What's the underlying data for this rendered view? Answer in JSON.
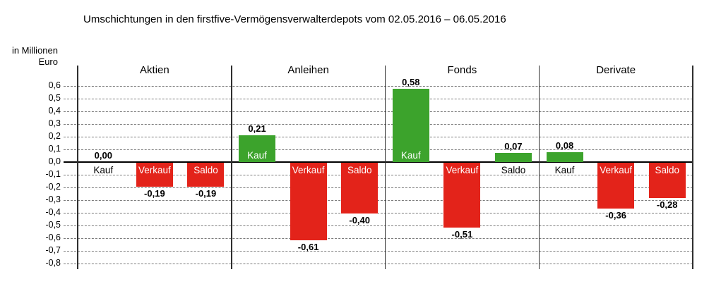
{
  "title": "Umschichtungen in den firstfive-Vermögensverwalterdepots vom 02.05.2016 – 06.05.2016",
  "y_axis": {
    "unit_line1": "in Millionen",
    "unit_line2": "Euro",
    "tick_labels": [
      "0,6",
      "0,5",
      "0,4",
      "0,3",
      "0,2",
      "0,1",
      "0,0",
      "-0,1",
      "-0,2",
      "-0,3",
      "-0,4",
      "-0,5",
      "-0,6",
      "-0,7",
      "-0,8"
    ],
    "max": 0.6,
    "min": -0.8,
    "step": 0.1
  },
  "colors": {
    "positive_bar": "#3ca32c",
    "negative_bar": "#e3231a",
    "gridline": "#7b7b7b",
    "axis": "#000000"
  },
  "chart_data": {
    "type": "bar",
    "title": "Umschichtungen in den firstfive-Vermögensverwalterdepots vom 02.05.2016 – 06.05.2016",
    "ylabel": "in Millionen Euro",
    "ylim": [
      -0.8,
      0.6
    ],
    "grid": true,
    "legend": "none",
    "categories": [
      "Kauf",
      "Verkauf",
      "Saldo"
    ],
    "groups": [
      {
        "name": "Aktien",
        "bars": [
          {
            "label": "Kauf",
            "value": 0.0,
            "display": "0,00"
          },
          {
            "label": "Verkauf",
            "value": -0.19,
            "display": "-0,19"
          },
          {
            "label": "Saldo",
            "value": -0.19,
            "display": "-0,19"
          }
        ]
      },
      {
        "name": "Anleihen",
        "bars": [
          {
            "label": "Kauf",
            "value": 0.21,
            "display": "0,21"
          },
          {
            "label": "Verkauf",
            "value": -0.61,
            "display": "-0,61"
          },
          {
            "label": "Saldo",
            "value": -0.4,
            "display": "-0,40"
          }
        ]
      },
      {
        "name": "Fonds",
        "bars": [
          {
            "label": "Kauf",
            "value": 0.58,
            "display": "0,58"
          },
          {
            "label": "Verkauf",
            "value": -0.51,
            "display": "-0,51"
          },
          {
            "label": "Saldo",
            "value": 0.07,
            "display": "0,07"
          }
        ]
      },
      {
        "name": "Derivate",
        "bars": [
          {
            "label": "Kauf",
            "value": 0.08,
            "display": "0,08"
          },
          {
            "label": "Verkauf",
            "value": -0.36,
            "display": "-0,36"
          },
          {
            "label": "Saldo",
            "value": -0.28,
            "display": "-0,28"
          }
        ]
      }
    ]
  }
}
